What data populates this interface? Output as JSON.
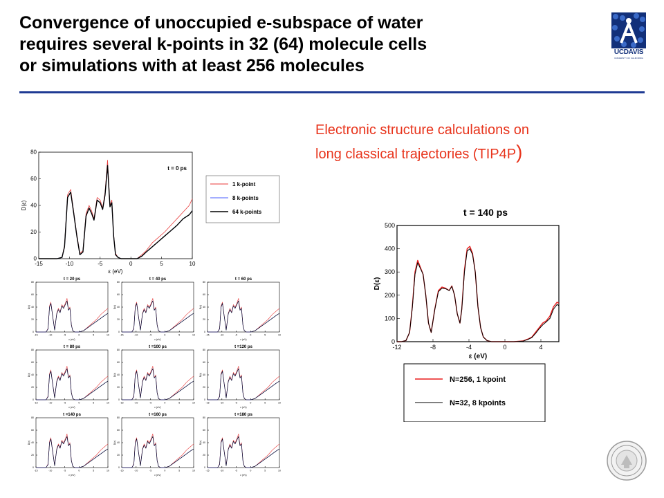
{
  "slide": {
    "title_lines": [
      "Convergence of unoccupied e-subspace of water",
      "requires several k-points in 32 (64) molecule cells",
      "or simulations with at least 256 molecules"
    ],
    "subtitle_line1": "Electronic structure calculations on",
    "subtitle_line2": "long classical trajectories (TIP4P",
    "subtitle_paren": ")",
    "logo_text": "UCDAVIS",
    "logo_subtext": "UNIVERSITY OF CALIFORNIA",
    "colors": {
      "title_rule": "#1f3a93",
      "subtitle": "#e8341c",
      "logo": "#12307a"
    },
    "icons": [
      "uc-davis-logo-icon",
      "uc-seal-icon"
    ]
  },
  "chart_data": [
    {
      "type": "line",
      "title": "t = 0 ps",
      "xlabel": "ε (eV)",
      "ylabel": "D(ε)",
      "xlim": [
        -15,
        10
      ],
      "ylim": [
        0,
        80
      ],
      "xticks": [
        -15,
        -10,
        -5,
        0,
        5,
        10
      ],
      "xtick_labels": [
        "-15",
        "-10",
        "-5",
        "0",
        "5",
        "10"
      ],
      "yticks": [
        0,
        20,
        40,
        60,
        80
      ],
      "legend_position": "right",
      "legend": [
        "1 k-point",
        "8 k-points",
        "64 k-points"
      ],
      "series_colors": [
        "#e83a3a",
        "#4a5cff",
        "#000000"
      ],
      "x": [
        -15,
        -12,
        -11.2,
        -10.8,
        -10.3,
        -9.8,
        -9.3,
        -8.8,
        -8.3,
        -7.8,
        -7.3,
        -6.8,
        -6.4,
        -6,
        -5.5,
        -5,
        -4.6,
        -4.2,
        -3.8,
        -3.4,
        -3.1,
        -2.8,
        -2.5,
        -2.1,
        -1.6,
        -1.1,
        -0.6,
        0,
        1,
        1.8,
        2.5,
        3.5,
        4.5,
        5.5,
        6.5,
        7.5,
        8.5,
        9.5,
        10
      ],
      "series": [
        {
          "values": [
            0,
            0,
            1,
            10,
            48,
            52,
            35,
            18,
            4,
            6,
            34,
            40,
            36,
            30,
            46,
            44,
            38,
            50,
            74,
            40,
            44,
            18,
            4,
            1,
            0,
            0,
            0,
            0,
            0,
            3,
            6,
            12,
            16,
            20,
            25,
            30,
            35,
            40,
            45
          ]
        },
        {
          "values": [
            0,
            0,
            1,
            9,
            46,
            50,
            34,
            17,
            3,
            5,
            32,
            38,
            34,
            29,
            44,
            42,
            37,
            48,
            70,
            39,
            42,
            17,
            3,
            1,
            0,
            0,
            0,
            0,
            0,
            2,
            5,
            9,
            13,
            17,
            21,
            25,
            30,
            33,
            36
          ]
        },
        {
          "values": [
            0,
            0,
            1,
            9,
            46,
            50,
            34,
            17,
            3,
            5,
            32,
            38,
            34,
            29,
            44,
            42,
            37,
            48,
            70,
            39,
            42,
            17,
            3,
            1,
            0,
            0,
            0,
            0,
            0,
            2,
            5,
            9,
            13,
            17,
            21,
            25,
            30,
            33,
            36
          ]
        }
      ]
    },
    {
      "type": "line",
      "panels": [
        {
          "title": "t = 20 ps"
        },
        {
          "title": "t = 40 ps"
        },
        {
          "title": "t = 60 ps"
        },
        {
          "title": "t = 80 ps"
        },
        {
          "title": "t =100 ps"
        },
        {
          "title": "t =120 ps"
        },
        {
          "title": "t =140 ps"
        },
        {
          "title": "t =160 ps"
        },
        {
          "title": "t =180 ps"
        }
      ],
      "xlabel": "ε (eV)",
      "ylabel": "D(ε)",
      "xlim": [
        -15,
        10
      ],
      "ylim": [
        0,
        80
      ],
      "xticks": [
        -15,
        -10,
        -5,
        0,
        5,
        10
      ],
      "xtick_labels": [
        "-15",
        "-10",
        "-5",
        "0",
        "5",
        "10"
      ],
      "yticks": [
        0,
        20,
        40,
        60,
        80
      ],
      "series_colors": [
        "#e83a3a",
        "#4a5cff",
        "#000000"
      ],
      "x": [
        -15,
        -11.5,
        -10.8,
        -10.3,
        -9.8,
        -9.3,
        -8.5,
        -7.8,
        -7.2,
        -6.6,
        -6,
        -5.4,
        -4.8,
        -4.2,
        -3.7,
        -3.2,
        -2.7,
        -2.2,
        -1.5,
        0,
        1.5,
        3,
        4.5,
        6,
        7.5,
        9,
        10
      ],
      "series": [
        {
          "values": [
            0,
            0,
            6,
            42,
            48,
            30,
            4,
            30,
            38,
            32,
            44,
            40,
            46,
            54,
            36,
            40,
            12,
            2,
            0,
            0,
            2,
            8,
            14,
            20,
            28,
            34,
            38
          ]
        },
        {
          "values": [
            0,
            0,
            5,
            40,
            46,
            29,
            3,
            29,
            36,
            31,
            42,
            38,
            44,
            50,
            35,
            38,
            11,
            2,
            0,
            0,
            2,
            7,
            12,
            17,
            22,
            27,
            30
          ]
        },
        {
          "values": [
            0,
            0,
            5,
            40,
            46,
            29,
            3,
            29,
            36,
            31,
            42,
            38,
            44,
            50,
            35,
            38,
            11,
            2,
            0,
            0,
            2,
            7,
            12,
            17,
            22,
            27,
            30
          ]
        }
      ]
    },
    {
      "type": "line",
      "title": "t = 140 ps",
      "xlabel": "ε (eV)",
      "ylabel": "D(ε)",
      "xlim": [
        -12,
        6
      ],
      "ylim": [
        0,
        500
      ],
      "xticks": [
        -12,
        -8,
        -4,
        0,
        4
      ],
      "xtick_labels": [
        "-12",
        "-8",
        "-4",
        "0",
        "4"
      ],
      "yticks": [
        0,
        100,
        200,
        300,
        400,
        500
      ],
      "legend_position": "bottom",
      "legend": [
        "N=256, 1 kpoint",
        "N=32, 8 kpoints"
      ],
      "series_colors": [
        "#e81c1c",
        "#000000"
      ],
      "x": [
        -12,
        -11.5,
        -11,
        -10.6,
        -10.3,
        -10,
        -9.7,
        -9.4,
        -9.1,
        -8.8,
        -8.5,
        -8.2,
        -7.8,
        -7.4,
        -7,
        -6.6,
        -6.2,
        -5.9,
        -5.6,
        -5.3,
        -5,
        -4.8,
        -4.5,
        -4.2,
        -3.9,
        -3.6,
        -3.3,
        -3,
        -2.7,
        -2.4,
        -2,
        -1.5,
        0,
        1,
        2,
        2.6,
        3,
        3.4,
        3.8,
        4.2,
        4.6,
        5,
        5.4,
        5.8,
        6
      ],
      "series": [
        {
          "values": [
            0,
            0,
            5,
            40,
            150,
            300,
            350,
            320,
            290,
            200,
            80,
            40,
            140,
            220,
            235,
            230,
            220,
            240,
            200,
            120,
            80,
            140,
            310,
            400,
            410,
            380,
            300,
            150,
            60,
            20,
            5,
            0,
            0,
            0,
            3,
            12,
            20,
            40,
            60,
            80,
            90,
            110,
            150,
            170,
            165
          ]
        },
        {
          "values": [
            0,
            0,
            5,
            40,
            145,
            290,
            340,
            315,
            290,
            200,
            80,
            40,
            138,
            215,
            230,
            228,
            220,
            238,
            200,
            120,
            80,
            138,
            300,
            390,
            400,
            375,
            300,
            150,
            60,
            20,
            5,
            0,
            0,
            0,
            2,
            10,
            18,
            35,
            55,
            72,
            85,
            100,
            140,
            160,
            155
          ]
        }
      ]
    }
  ]
}
